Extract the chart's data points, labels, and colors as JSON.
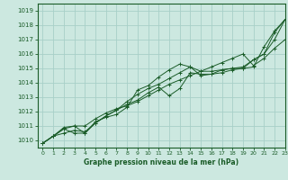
{
  "title": "",
  "xlabel": "Graphe pression niveau de la mer (hPa)",
  "ylabel": "",
  "bg_color": "#cce8e0",
  "grid_color": "#a8cfc8",
  "line_color": "#1a5c28",
  "xlim": [
    -0.5,
    23
  ],
  "ylim": [
    1009.5,
    1019.5
  ],
  "yticks": [
    1010,
    1011,
    1012,
    1013,
    1014,
    1015,
    1016,
    1017,
    1018,
    1019
  ],
  "xticks": [
    0,
    1,
    2,
    3,
    4,
    5,
    6,
    7,
    8,
    9,
    10,
    11,
    12,
    13,
    14,
    15,
    16,
    17,
    18,
    19,
    20,
    21,
    22,
    23
  ],
  "series": [
    [
      1009.8,
      1010.3,
      1010.5,
      1010.7,
      1010.6,
      1011.2,
      1011.7,
      1012.1,
      1012.5,
      1012.8,
      1013.3,
      1013.7,
      1013.1,
      1013.6,
      1014.7,
      1014.6,
      1014.6,
      1014.9,
      1015.0,
      1015.0,
      1015.1,
      1016.5,
      1017.6,
      1018.4
    ],
    [
      1009.8,
      1010.3,
      1010.8,
      1010.5,
      1010.5,
      1011.3,
      1011.6,
      1011.8,
      1012.3,
      1013.5,
      1013.8,
      1014.4,
      1014.9,
      1015.3,
      1015.1,
      1014.5,
      1014.6,
      1014.7,
      1014.9,
      1015.0,
      1015.6,
      1016.0,
      1017.0,
      1018.4
    ],
    [
      1009.8,
      1010.3,
      1010.8,
      1011.0,
      1011.0,
      1011.5,
      1011.9,
      1012.2,
      1012.4,
      1012.7,
      1013.1,
      1013.5,
      1013.9,
      1014.2,
      1014.5,
      1014.8,
      1015.1,
      1015.4,
      1015.7,
      1016.0,
      1015.2,
      1015.7,
      1016.4,
      1017.0
    ],
    [
      1009.8,
      1010.3,
      1010.9,
      1011.0,
      1010.5,
      1011.2,
      1011.7,
      1012.1,
      1012.7,
      1013.2,
      1013.6,
      1013.9,
      1014.3,
      1014.7,
      1015.1,
      1014.8,
      1014.8,
      1014.9,
      1015.0,
      1015.1,
      1015.6,
      1016.0,
      1017.5,
      1018.4
    ]
  ],
  "xlabel_fontsize": 5.5,
  "xlabel_fontweight": "bold",
  "ytick_fontsize": 5.0,
  "xtick_fontsize": 4.5
}
